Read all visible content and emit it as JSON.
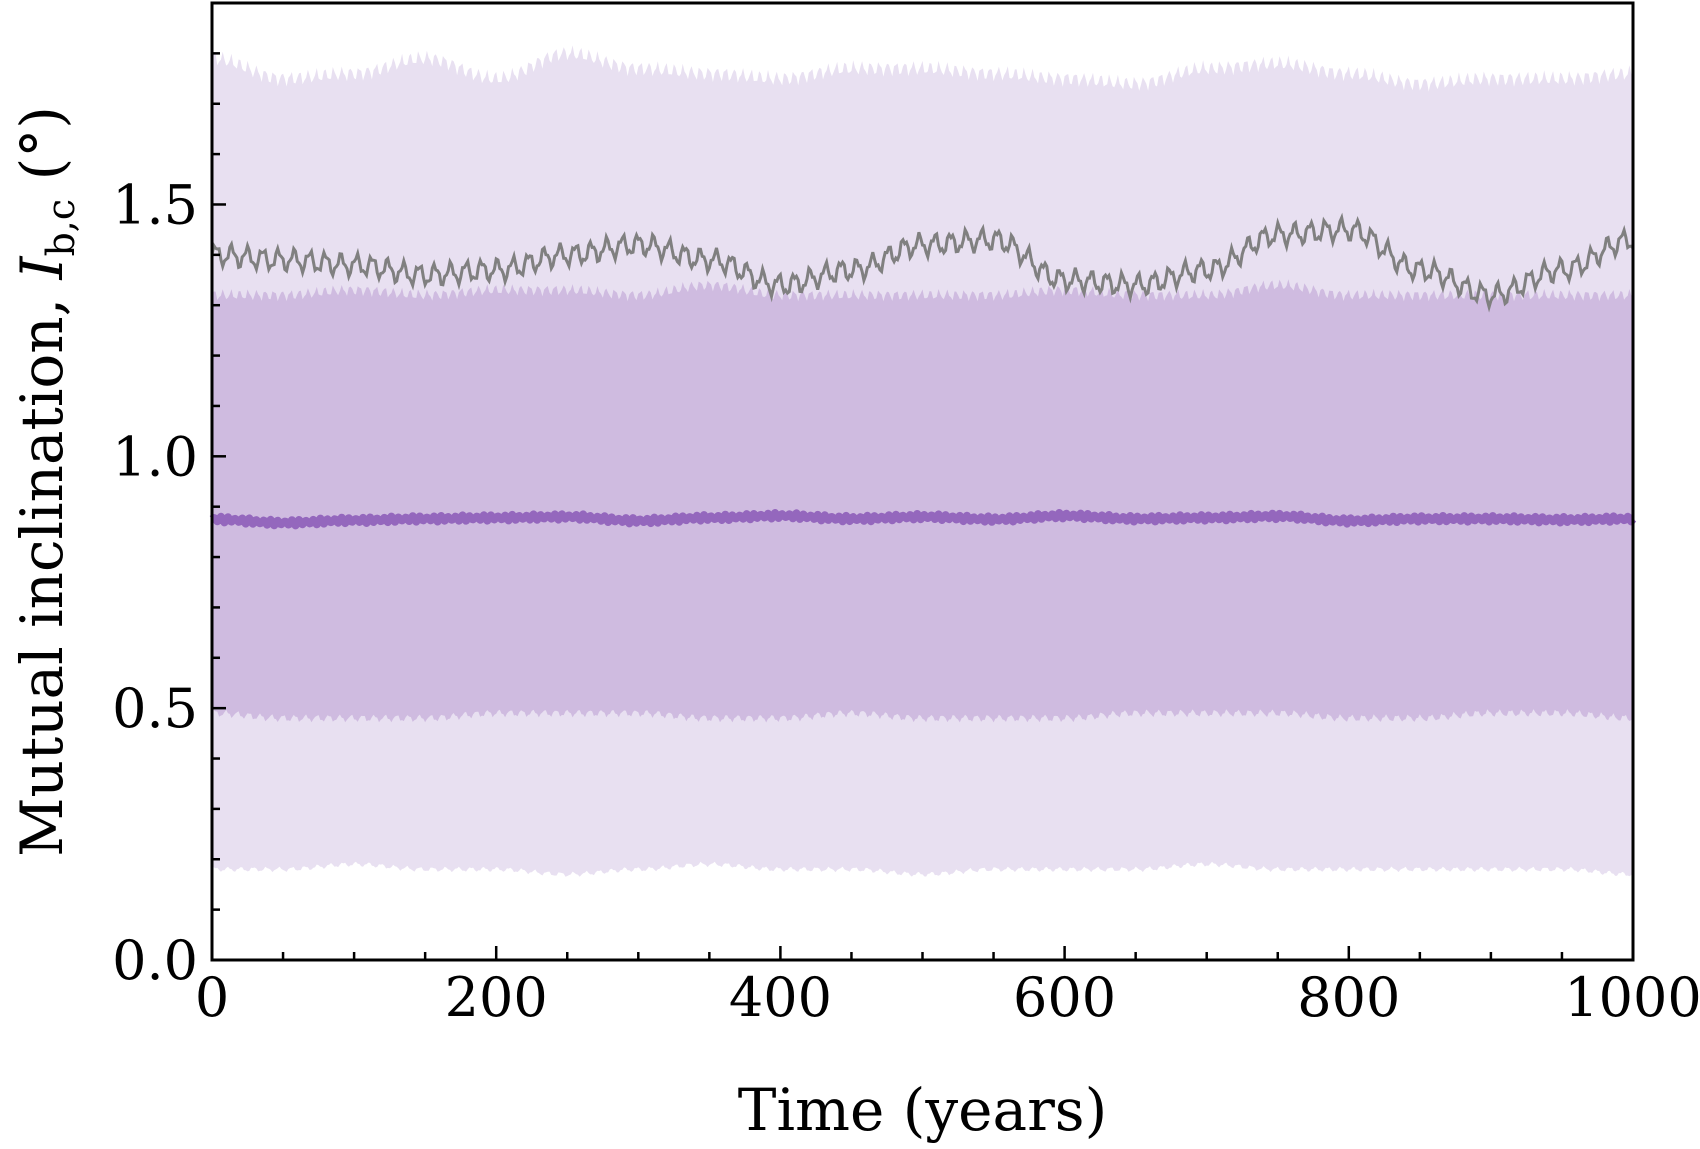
{
  "chart_data": {
    "type": "area",
    "title": "",
    "xlabel": "Time (years)",
    "ylabel": {
      "prefix": "Mutual inclination, ",
      "symbol": "I",
      "subscript": "b,c",
      "unit": " (°)"
    },
    "xlim": [
      0,
      1000
    ],
    "ylim": [
      0,
      1.9
    ],
    "xticks": [
      0,
      200,
      400,
      600,
      800,
      1000
    ],
    "xtick_labels": [
      "0",
      "200",
      "400",
      "600",
      "800",
      "1000"
    ],
    "yticks": [
      0.0,
      0.5,
      1.0,
      1.5
    ],
    "ytick_labels": [
      "0.0",
      "0.5",
      "1.0",
      "1.5"
    ],
    "grid": false,
    "colors": {
      "outer_band": "#e8e0f1",
      "inner_band": "#cfbbe0",
      "median_line": "#9467bd",
      "single_run_line": "#808080"
    },
    "x": [
      0,
      50,
      100,
      150,
      200,
      250,
      300,
      350,
      400,
      450,
      500,
      550,
      600,
      650,
      700,
      750,
      800,
      850,
      900,
      950,
      1000
    ],
    "series": [
      {
        "role": "outer_band_upper",
        "values": [
          1.79,
          1.75,
          1.76,
          1.79,
          1.75,
          1.8,
          1.77,
          1.76,
          1.75,
          1.77,
          1.77,
          1.76,
          1.75,
          1.74,
          1.77,
          1.78,
          1.76,
          1.74,
          1.75,
          1.75,
          1.76
        ]
      },
      {
        "role": "outer_band_lower",
        "values": [
          0.18,
          0.18,
          0.19,
          0.18,
          0.18,
          0.17,
          0.18,
          0.19,
          0.18,
          0.18,
          0.17,
          0.18,
          0.18,
          0.18,
          0.19,
          0.18,
          0.18,
          0.18,
          0.18,
          0.18,
          0.17
        ]
      },
      {
        "role": "inner_band_upper",
        "values": [
          1.32,
          1.32,
          1.33,
          1.32,
          1.33,
          1.33,
          1.32,
          1.34,
          1.32,
          1.32,
          1.32,
          1.32,
          1.33,
          1.32,
          1.32,
          1.34,
          1.32,
          1.32,
          1.32,
          1.32,
          1.32
        ]
      },
      {
        "role": "inner_band_lower",
        "values": [
          0.49,
          0.48,
          0.48,
          0.48,
          0.49,
          0.49,
          0.49,
          0.48,
          0.48,
          0.49,
          0.48,
          0.48,
          0.48,
          0.49,
          0.49,
          0.49,
          0.48,
          0.48,
          0.49,
          0.49,
          0.48
        ]
      },
      {
        "role": "median_line",
        "values": [
          0.875,
          0.868,
          0.873,
          0.876,
          0.878,
          0.88,
          0.872,
          0.878,
          0.882,
          0.876,
          0.88,
          0.875,
          0.882,
          0.876,
          0.878,
          0.881,
          0.872,
          0.876,
          0.876,
          0.874,
          0.876
        ]
      },
      {
        "role": "single_run_line",
        "values": [
          1.4,
          1.39,
          1.38,
          1.36,
          1.37,
          1.4,
          1.42,
          1.39,
          1.34,
          1.37,
          1.42,
          1.43,
          1.35,
          1.34,
          1.37,
          1.44,
          1.45,
          1.37,
          1.32,
          1.37,
          1.43
        ]
      }
    ]
  }
}
